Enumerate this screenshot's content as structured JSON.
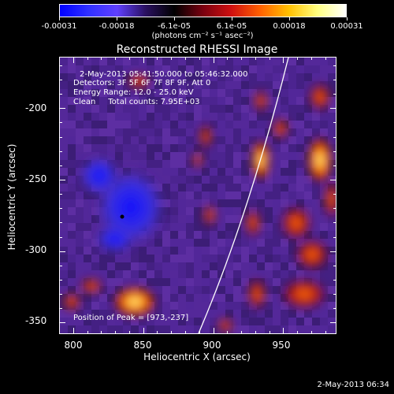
{
  "colorbar": {
    "tick_labels": [
      "-0.00031",
      "-0.00018",
      "-6.1e-05",
      "6.1e-05",
      "0.00018",
      "0.00031"
    ],
    "units": "(photons cm⁻² s⁻¹ asec⁻²)",
    "colors": [
      "#0000ff",
      "#3030ff",
      "#6040ff",
      "#2a1060",
      "#000000",
      "#7a0010",
      "#d01010",
      "#ff6000",
      "#ffc000",
      "#ffff80",
      "#ffffff"
    ]
  },
  "plot": {
    "title": "Reconstructed RHESSI Image",
    "time_range": "2-May-2013 05:41:50.000 to 05:46:32.000",
    "detectors": "Detectors: 3F 5F 6F 7F 8F 9F, Att 0",
    "energy_range": "Energy Range: 12.0 - 25.0 keV",
    "clean_info": "Clean     Total counts: 7.95E+03",
    "peak_position": "Position of Peak = [973,-237]",
    "xlabel": "Heliocentric X (arcsec)",
    "ylabel": "Heliocentric Y (arcsec)",
    "x_ticks": [
      "800",
      "850",
      "900",
      "950"
    ],
    "y_ticks": [
      "-200",
      "-250",
      "-300",
      "-350"
    ],
    "x_range": [
      790,
      988
    ],
    "y_range": [
      -358,
      -164
    ]
  },
  "footer": {
    "timestamp": "2-May-2013 06:34"
  },
  "colors": {
    "background": "#000000",
    "foreground": "#ffffff",
    "mid_purple": "#5a2a9a"
  }
}
